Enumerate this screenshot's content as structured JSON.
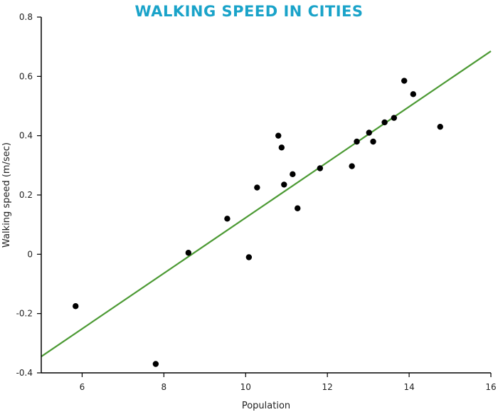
{
  "chart_data": {
    "type": "scatter",
    "title": "WALKING SPEED IN CITIES",
    "xlabel": "Population",
    "ylabel": "Walking speed (m/sec)",
    "xlim": [
      5,
      16
    ],
    "ylim": [
      -0.4,
      0.8
    ],
    "x_ticks": [
      6,
      8,
      10,
      12,
      14,
      16
    ],
    "y_ticks": [
      -0.4,
      -0.2,
      0,
      0.2,
      0.4,
      0.6,
      0.8
    ],
    "y_tick_labels": [
      "-0.4",
      "-0.2",
      "0",
      "0.2",
      "0.4",
      "0.6",
      "0.8"
    ],
    "grid": false,
    "colors": {
      "title": "#1aa3c9",
      "points": "#000000",
      "trend_line": "#4c9a34",
      "axis": "#000000"
    },
    "points": [
      {
        "x": 5.84,
        "y": -0.175
      },
      {
        "x": 7.8,
        "y": -0.37
      },
      {
        "x": 8.6,
        "y": 0.005
      },
      {
        "x": 9.55,
        "y": 0.12
      },
      {
        "x": 10.08,
        "y": -0.01
      },
      {
        "x": 10.28,
        "y": 0.225
      },
      {
        "x": 10.8,
        "y": 0.4
      },
      {
        "x": 10.88,
        "y": 0.36
      },
      {
        "x": 10.94,
        "y": 0.235
      },
      {
        "x": 11.15,
        "y": 0.27
      },
      {
        "x": 11.27,
        "y": 0.155
      },
      {
        "x": 11.82,
        "y": 0.29
      },
      {
        "x": 12.6,
        "y": 0.297
      },
      {
        "x": 12.72,
        "y": 0.38
      },
      {
        "x": 13.02,
        "y": 0.41
      },
      {
        "x": 13.12,
        "y": 0.38
      },
      {
        "x": 13.4,
        "y": 0.445
      },
      {
        "x": 13.63,
        "y": 0.46
      },
      {
        "x": 13.88,
        "y": 0.585
      },
      {
        "x": 14.1,
        "y": 0.54
      },
      {
        "x": 14.76,
        "y": 0.43
      }
    ],
    "trend_line": {
      "x": [
        5,
        16
      ],
      "y": [
        -0.345,
        0.685
      ]
    }
  }
}
